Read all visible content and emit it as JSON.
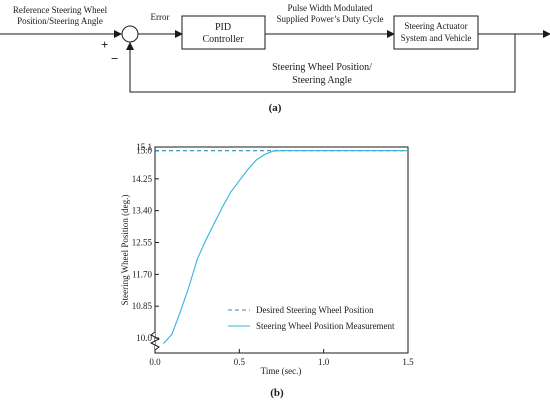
{
  "block_diagram": {
    "input_label_line1": "Reference Steering Wheel",
    "input_label_line2": "Position/Steering Angle",
    "error_label": "Error",
    "plus_sign": "+",
    "minus_sign": "−",
    "pid_line1": "PID",
    "pid_line2": "Controller",
    "pwm_line1": "Pulse Width Modulated",
    "pwm_line2": "Supplied Power’s Duty Cycle",
    "plant_line1": "Steering Actuator",
    "plant_line2": "System and Vehicle",
    "feedback_line1": "Steering Wheel Position/",
    "feedback_line2": "Steering Angle",
    "caption": "(a)"
  },
  "caption_b": "(b)",
  "chart_data": {
    "type": "line",
    "title": "",
    "xlabel": "Time (sec.)",
    "ylabel": "Steering Wheel Position (deg.)",
    "xlim": [
      0,
      1.5
    ],
    "ylim": [
      9.6,
      15.1
    ],
    "x_ticks": [
      "0.0",
      "0.5",
      "1.0",
      "1.5"
    ],
    "y_ticks": [
      "10.0",
      "10.85",
      "11.70",
      "12.55",
      "13.40",
      "14.25",
      "15.0",
      "15.1"
    ],
    "axis_break": true,
    "grid": false,
    "legend_position": "bottom-right",
    "series": [
      {
        "name": "Desired Steering Wheel Position",
        "style": "dashed",
        "color": "#2a8fbf",
        "x": [
          0,
          1.5
        ],
        "y": [
          15.0,
          15.0
        ]
      },
      {
        "name": "Steering Wheel Position Measurement",
        "style": "solid",
        "color": "#33b3dc",
        "x": [
          0.05,
          0.1,
          0.15,
          0.2,
          0.25,
          0.3,
          0.35,
          0.4,
          0.45,
          0.5,
          0.55,
          0.6,
          0.65,
          0.7,
          0.75,
          0.8,
          0.9,
          1.0,
          1.2,
          1.5
        ],
        "y": [
          9.85,
          10.1,
          10.7,
          11.35,
          12.1,
          12.6,
          13.05,
          13.5,
          13.9,
          14.2,
          14.5,
          14.75,
          14.9,
          14.99,
          15.0,
          15.0,
          15.0,
          15.0,
          15.0,
          15.0
        ]
      }
    ]
  }
}
